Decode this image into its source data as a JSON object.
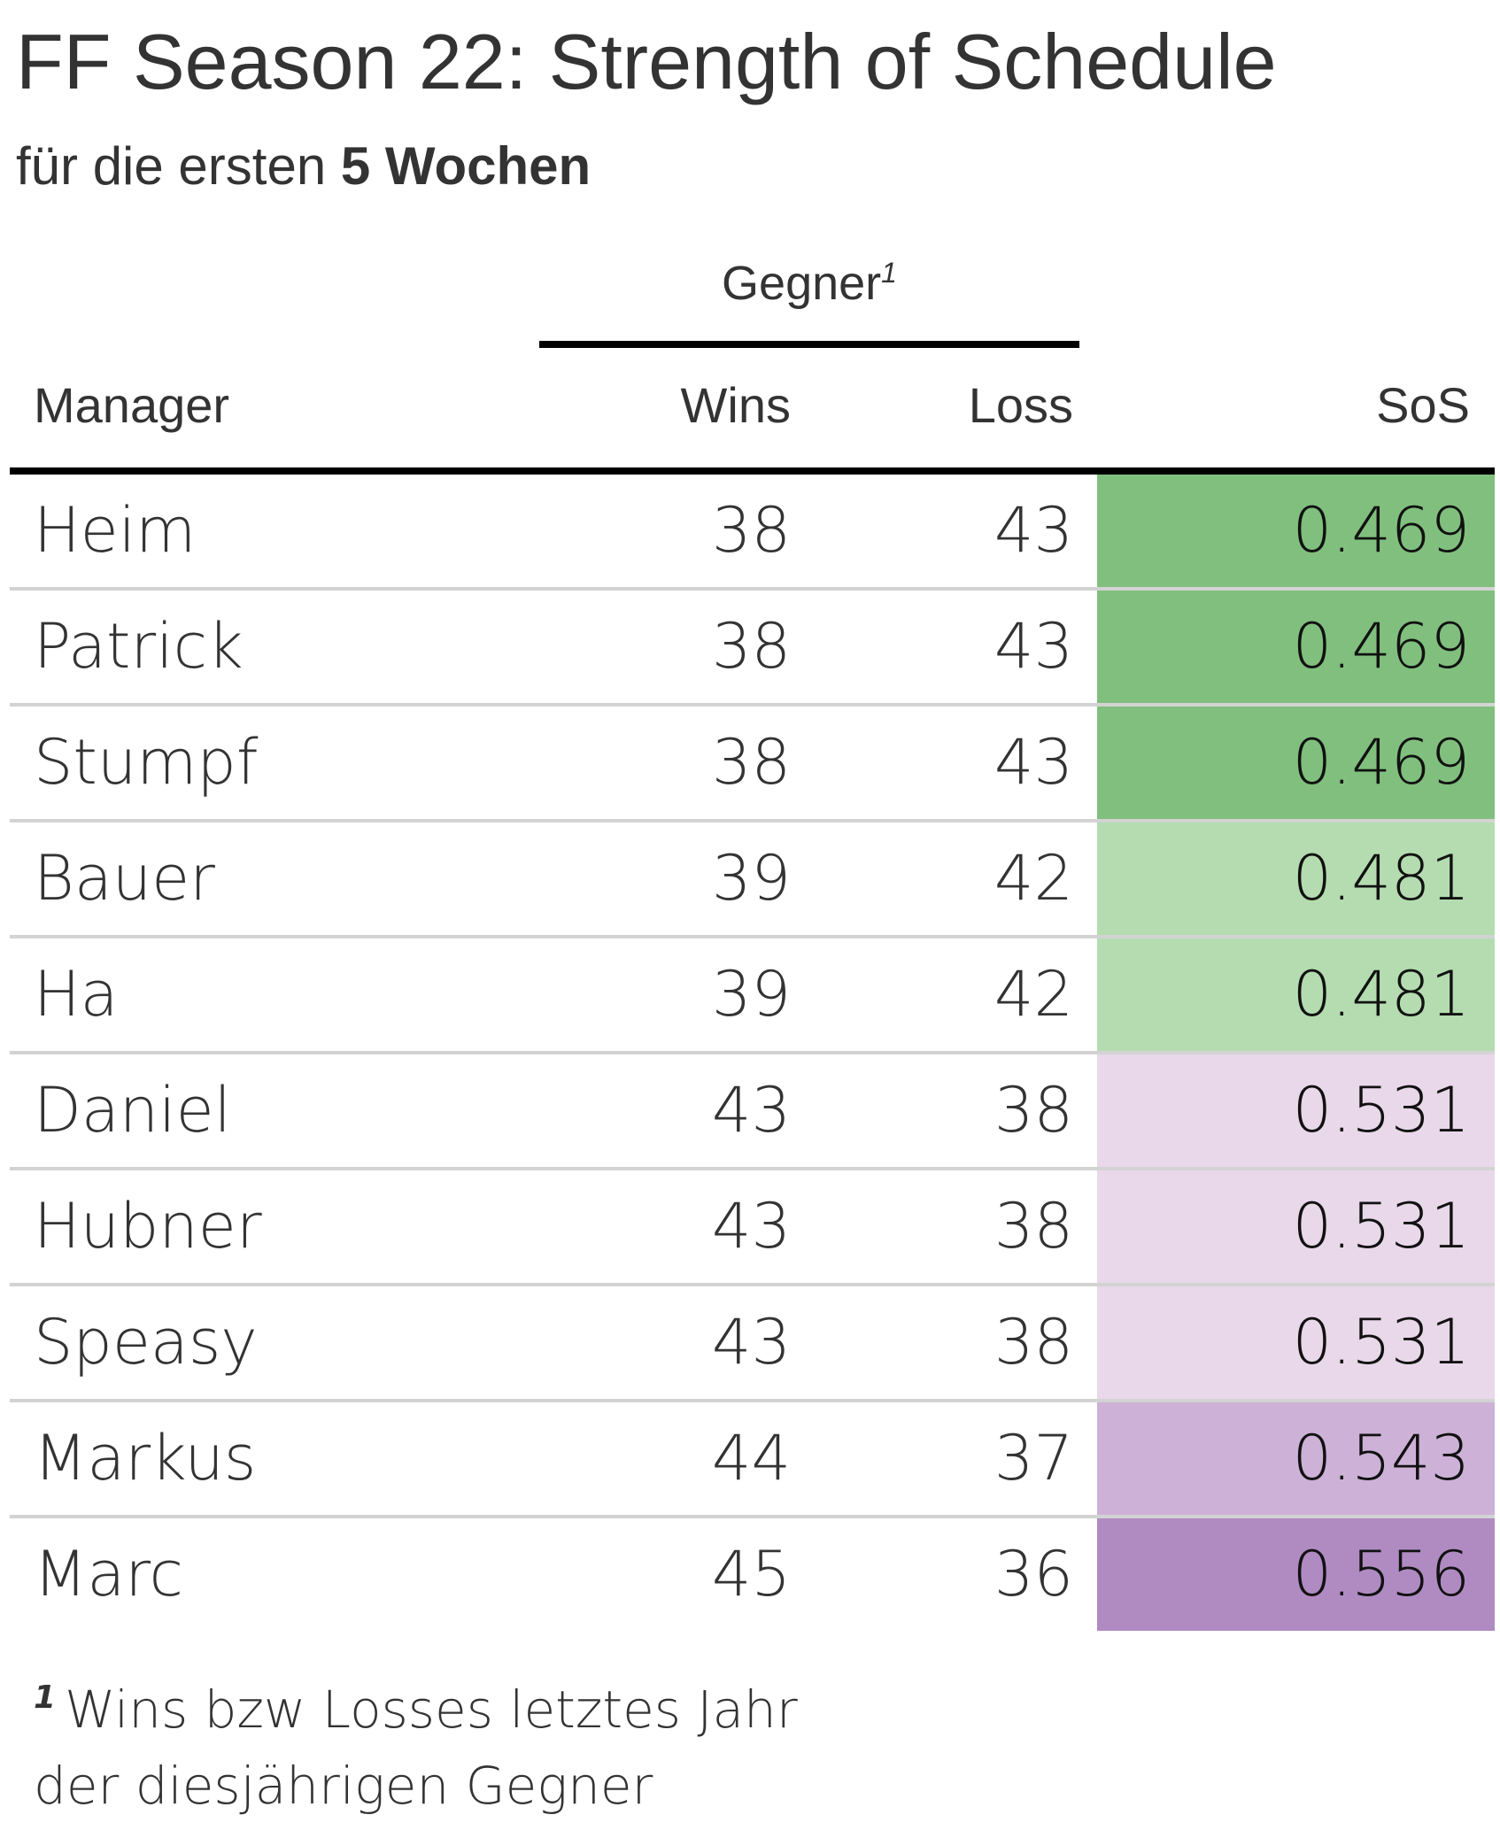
{
  "title": "FF Season 22: Strength of Schedule",
  "subtitle": {
    "prefix": "für die ersten ",
    "bold": "5 Wochen"
  },
  "table": {
    "spanner": {
      "label": "Gegner",
      "footnote_mark": "1"
    },
    "columns": {
      "manager": "Manager",
      "wins": "Wins",
      "loss": "Loss",
      "sos": "SoS"
    },
    "rows": [
      {
        "manager": "Heim",
        "wins": "38",
        "loss": "43",
        "sos": "0.469",
        "sos_color": "#80bf7d"
      },
      {
        "manager": "Patrick",
        "wins": "38",
        "loss": "43",
        "sos": "0.469",
        "sos_color": "#80bf7d"
      },
      {
        "manager": "Stumpf",
        "wins": "38",
        "loss": "43",
        "sos": "0.469",
        "sos_color": "#80bf7d"
      },
      {
        "manager": "Bauer",
        "wins": "39",
        "loss": "42",
        "sos": "0.481",
        "sos_color": "#b4dcb0"
      },
      {
        "manager": "Ha",
        "wins": "39",
        "loss": "42",
        "sos": "0.481",
        "sos_color": "#b4dcb0"
      },
      {
        "manager": "Daniel",
        "wins": "43",
        "loss": "38",
        "sos": "0.531",
        "sos_color": "#e8d8ea"
      },
      {
        "manager": "Hubner",
        "wins": "43",
        "loss": "38",
        "sos": "0.531",
        "sos_color": "#e8d8ea"
      },
      {
        "manager": "Speasy",
        "wins": "43",
        "loss": "38",
        "sos": "0.531",
        "sos_color": "#e8d8ea"
      },
      {
        "manager": "Markus",
        "wins": "44",
        "loss": "37",
        "sos": "0.543",
        "sos_color": "#cdb1d7"
      },
      {
        "manager": "Marc",
        "wins": "45",
        "loss": "36",
        "sos": "0.556",
        "sos_color": "#af8bc2"
      }
    ]
  },
  "footnote": {
    "mark": "1",
    "line1": "Wins bzw Losses letztes Jahr",
    "line2": "der diesjährigen Gegner"
  }
}
